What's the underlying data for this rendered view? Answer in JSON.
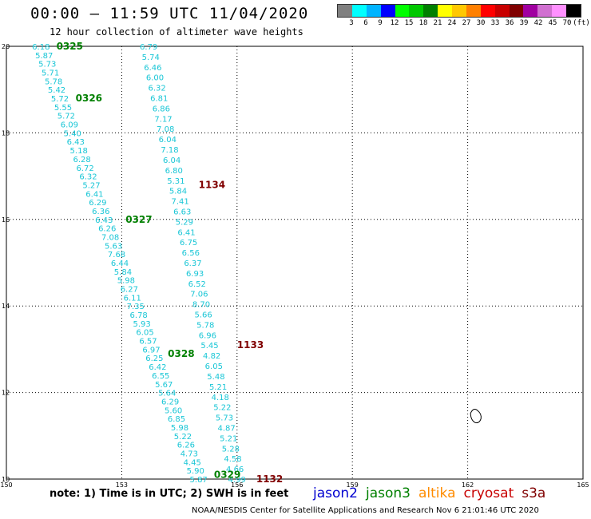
{
  "header": {
    "title": "00:00 – 11:59 UTC 11/04/2020",
    "subtitle": "12 hour collection of altimeter wave heights"
  },
  "legend": {
    "colors": [
      "#808080",
      "#00ffff",
      "#00b4ff",
      "#0000ff",
      "#00ff00",
      "#00c800",
      "#008000",
      "#ffff00",
      "#ffc800",
      "#ff8000",
      "#ff0000",
      "#c80000",
      "#800000",
      "#a000a0",
      "#d070d0",
      "#ff90ff",
      "#000000"
    ],
    "labels": [
      "3",
      "6",
      "9",
      "12",
      "15",
      "18",
      "21",
      "24",
      "27",
      "30",
      "33",
      "36",
      "39",
      "42",
      "45",
      "70",
      "(ft)"
    ]
  },
  "note": "note: 1) Time is in UTC; 2) SWH is in feet",
  "credit": "NOAA/NESDIS Center for Satellite Applications and Research   Nov  6 21:01:46 UTC 2020",
  "satellites": [
    {
      "name": "jason2",
      "color": "#0000d0"
    },
    {
      "name": "jason3",
      "color": "#008000"
    },
    {
      "name": "altika",
      "color": "#ff8c00"
    },
    {
      "name": "cryosat",
      "color": "#c80000"
    },
    {
      "name": "s3a",
      "color": "#800000"
    }
  ],
  "chart_data": {
    "type": "scatter",
    "title": "00:00 – 11:59 UTC 11/04/2020",
    "xlim": [
      150,
      165
    ],
    "ylim": [
      10,
      20
    ],
    "x_ticks": [
      "150",
      "153",
      "156",
      "159",
      "162",
      "165"
    ],
    "y_ticks": [
      "10",
      "12",
      "14",
      "16",
      "18",
      "20"
    ],
    "grid": true,
    "pass_labels": [
      {
        "text": "0325",
        "x": 151.3,
        "y": 20.0,
        "color": "#008000"
      },
      {
        "text": "0326",
        "x": 151.8,
        "y": 18.8,
        "color": "#008000"
      },
      {
        "text": "0327",
        "x": 153.1,
        "y": 16.0,
        "color": "#008000"
      },
      {
        "text": "0328",
        "x": 154.2,
        "y": 12.9,
        "color": "#008000"
      },
      {
        "text": "0329",
        "x": 155.4,
        "y": 10.1,
        "color": "#008000"
      },
      {
        "text": "1134",
        "x": 155.0,
        "y": 16.8,
        "color": "#800000"
      },
      {
        "text": "1133",
        "x": 156.0,
        "y": 13.1,
        "color": "#800000"
      },
      {
        "text": "1132",
        "x": 156.5,
        "y": 10.0,
        "color": "#800000"
      }
    ],
    "series": [
      {
        "name": "jason3",
        "values": [
          "6.18",
          "5.87",
          "5.73",
          "5.71",
          "5.78",
          "5.42",
          "5.72",
          "5.55",
          "5.72",
          "6.09",
          "5.40",
          "6.43",
          "5.18",
          "6.28",
          "6.72",
          "6.32",
          "5.27",
          "6.41",
          "6.29",
          "6.36",
          "6.43",
          "6.26",
          "7.08",
          "5.63",
          "7.68",
          "6.44",
          "5.84",
          "5.98",
          "6.27",
          "6.11",
          "7.35",
          "6.78",
          "5.93",
          "6.05",
          "6.57",
          "6.97",
          "6.25",
          "6.42",
          "6.55",
          "5.67",
          "5.64",
          "6.29",
          "5.60",
          "6.85",
          "5.98",
          "5.22",
          "6.26",
          "4.73",
          "4.45",
          "5.90",
          "5.87"
        ],
        "lat_start": 20.0,
        "lat_end": 10.0,
        "lon_start": 150.9,
        "lon_end": 155.0
      },
      {
        "name": "s3a",
        "values": [
          "6.79",
          "5.74",
          "6.46",
          "6.00",
          "6.32",
          "6.81",
          "6.86",
          "7.17",
          "7.08",
          "6.04",
          "7.18",
          "6.04",
          "6.80",
          "5.31",
          "5.84",
          "7.41",
          "6.63",
          "5.29",
          "6.41",
          "6.75",
          "6.56",
          "6.37",
          "6.93",
          "6.52",
          "7.06",
          "8.70",
          "5.66",
          "5.78",
          "6.96",
          "5.45",
          "4.82",
          "6.05",
          "5.48",
          "5.21",
          "4.18",
          "5.22",
          "5.73",
          "4.87",
          "5.21",
          "5.28",
          "4.58",
          "4.66",
          "4.99"
        ],
        "lat_start": 20.0,
        "lat_end": 10.0,
        "lon_start": 153.7,
        "lon_end": 156.0
      }
    ]
  }
}
